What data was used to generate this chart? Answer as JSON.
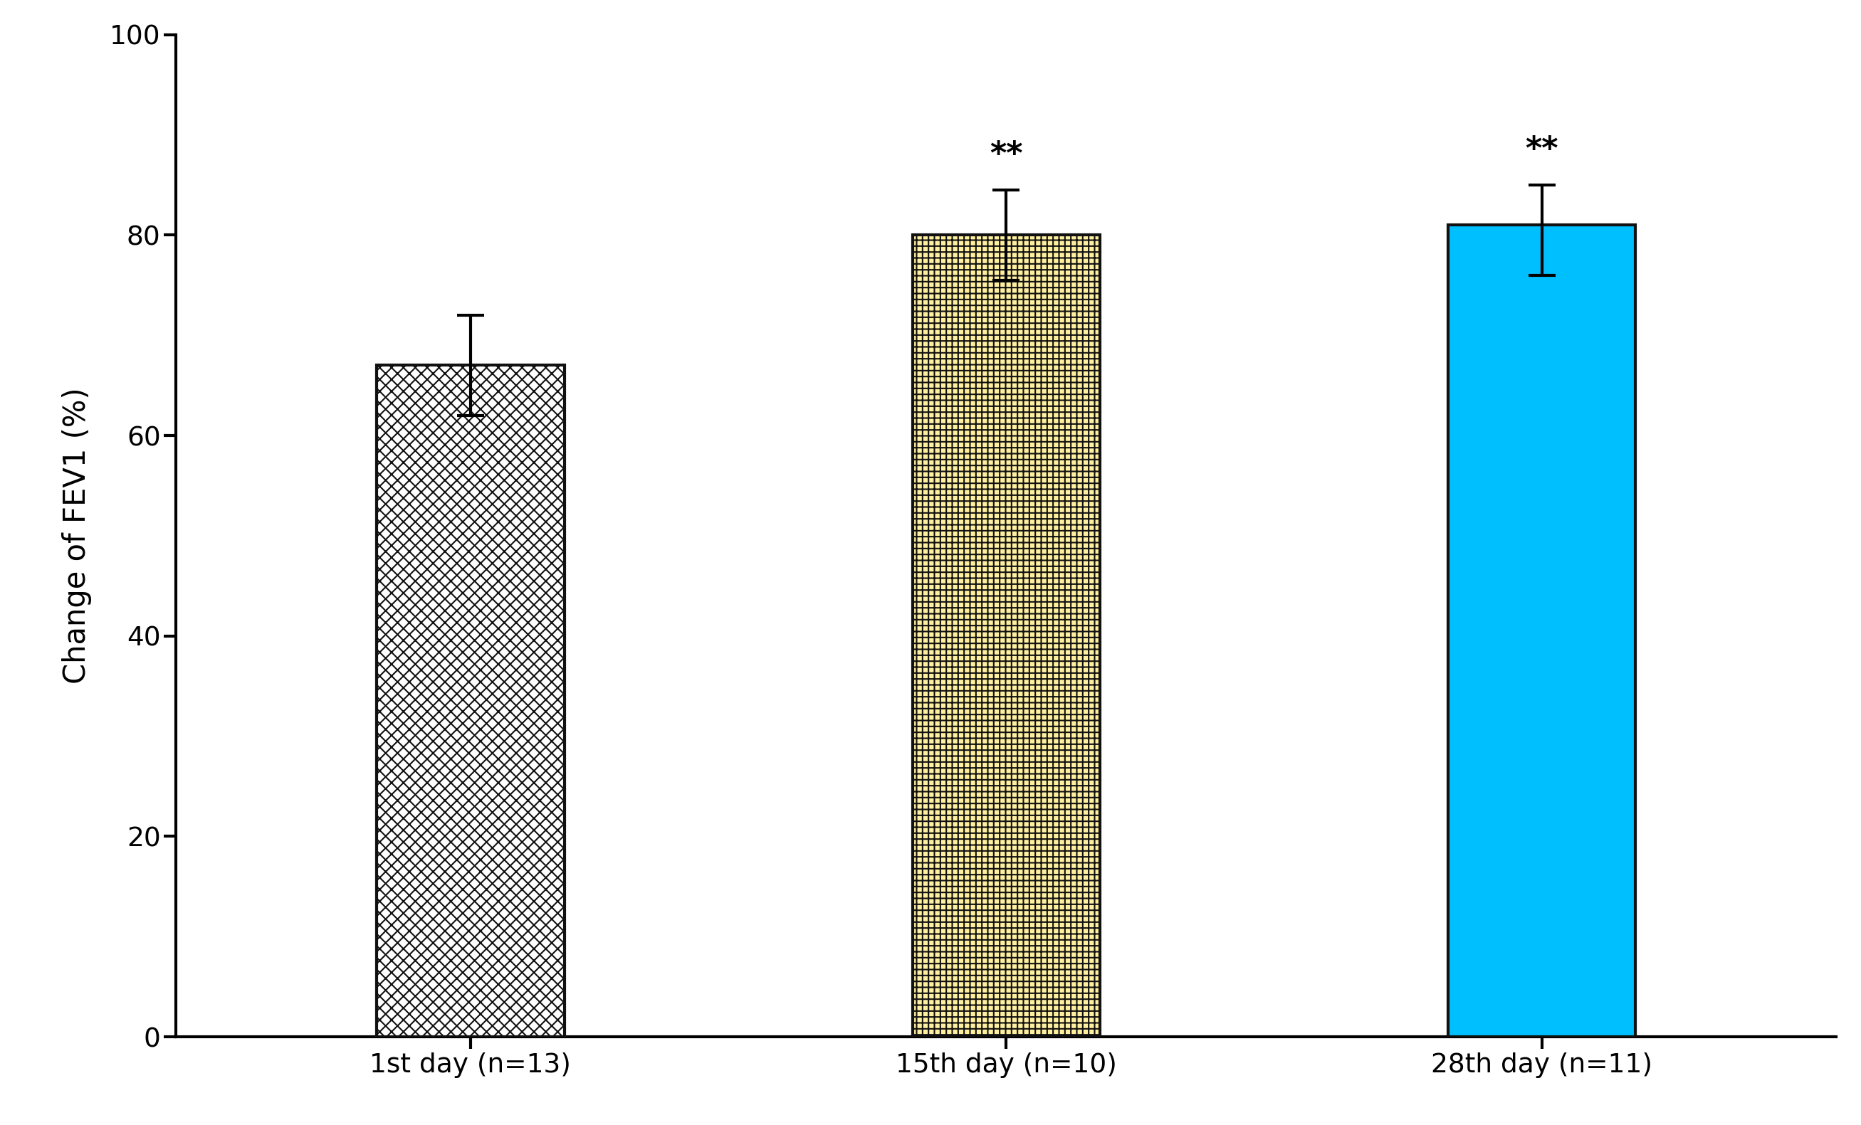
{
  "categories": [
    "1st day (n=13)",
    "15th day (n=10)",
    "28th day (n=11)"
  ],
  "values": [
    67.0,
    80.0,
    81.0
  ],
  "errors_upper": [
    5.0,
    4.5,
    4.0
  ],
  "errors_lower": [
    5.0,
    4.5,
    5.0
  ],
  "bar_colors": [
    "#ffffff",
    "#FFF0A0",
    "#00BFFF"
  ],
  "bar_edgecolors": [
    "#111111",
    "#111111",
    "#111111"
  ],
  "hatch_patterns": [
    "xx",
    "++",
    ""
  ],
  "hatch_colors": [
    "#b0b0b0",
    "#aab0dd",
    "none"
  ],
  "significance_labels": [
    "",
    "**",
    "**"
  ],
  "ylabel": "Change of FEV1 (%)",
  "ylim": [
    0,
    100
  ],
  "yticks": [
    0,
    20,
    40,
    60,
    80,
    100
  ],
  "background_color": "#ffffff",
  "axis_fontsize": 30,
  "tick_fontsize": 27,
  "sig_fontsize": 32,
  "bar_width": 0.35,
  "x_positions": [
    0,
    1,
    2
  ],
  "edge_linewidth": 3.0,
  "errorbar_linewidth": 3.0,
  "errorbar_capsize": 14,
  "errorbar_capthick": 3.0,
  "spine_linewidth": 3.0
}
